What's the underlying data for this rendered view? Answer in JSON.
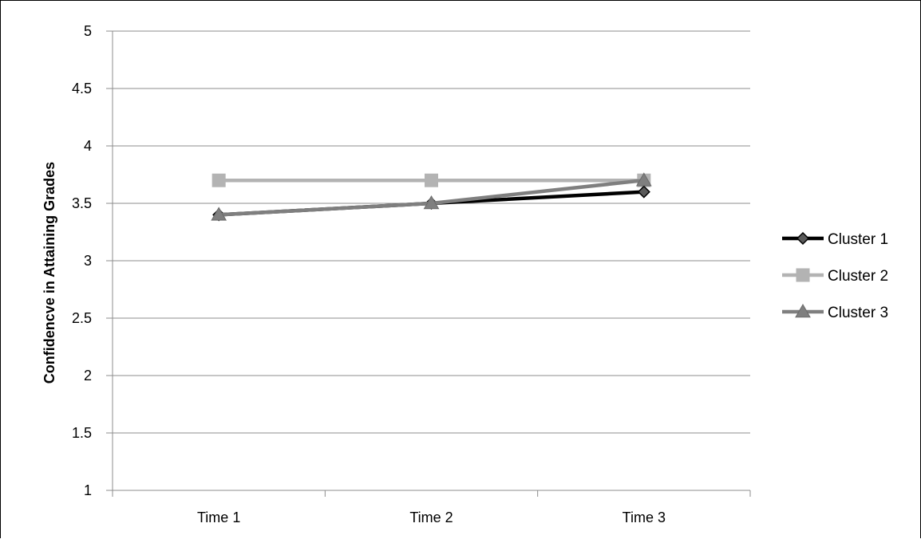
{
  "chart_data": {
    "type": "line",
    "title": "",
    "xlabel": "",
    "ylabel": "Confidencve in Attaining Grades",
    "categories": [
      "Time 1",
      "Time 2",
      "Time 3"
    ],
    "ylim": [
      1,
      5
    ],
    "yticks": [
      1,
      1.5,
      2,
      2.5,
      3,
      3.5,
      4,
      4.5,
      5
    ],
    "grid": "horizontal",
    "legend_position": "right",
    "series": [
      {
        "name": "Cluster 1",
        "values": [
          3.4,
          3.5,
          3.6
        ],
        "color": "#000000",
        "marker": "diamond"
      },
      {
        "name": "Cluster 2",
        "values": [
          3.7,
          3.7,
          3.7
        ],
        "color": "#b3b3b3",
        "marker": "square"
      },
      {
        "name": "Cluster 3",
        "values": [
          3.4,
          3.5,
          3.7
        ],
        "color": "#7f7f7f",
        "marker": "triangle"
      }
    ]
  }
}
